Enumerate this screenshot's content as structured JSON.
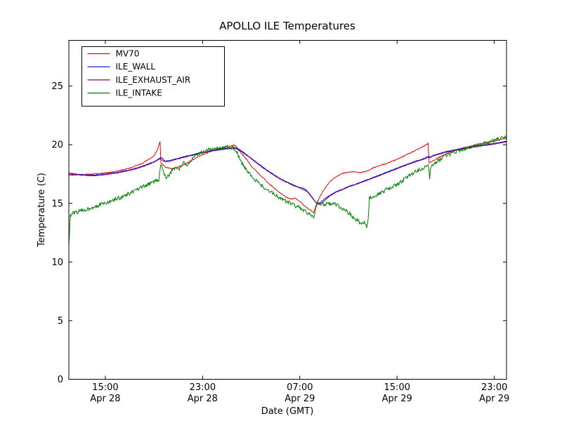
{
  "chart_data": {
    "type": "line",
    "title": "APOLLO ILE Temperatures",
    "xlabel": "Date (GMT)",
    "ylabel": "Temperature (C)",
    "x_unit_hours_since": "12:00 Apr 28 (GMT)",
    "xlim": [
      0,
      36
    ],
    "ylim": [
      0,
      28.9
    ],
    "grid": false,
    "legend_position": "upper left",
    "yticks": [
      0,
      5,
      10,
      15,
      20,
      25
    ],
    "xticks": [
      {
        "t": 3,
        "time": "15:00",
        "date": "Apr 28"
      },
      {
        "t": 11,
        "time": "23:00",
        "date": "Apr 28"
      },
      {
        "t": 19,
        "time": "07:00",
        "date": "Apr 29"
      },
      {
        "t": 27,
        "time": "15:00",
        "date": "Apr 29"
      },
      {
        "t": 35,
        "time": "23:00",
        "date": "Apr 29"
      }
    ],
    "series": [
      {
        "name": "MV70",
        "color": "#e60000",
        "noise": 0.04,
        "seed": 11,
        "points": [
          [
            0,
            17.4
          ],
          [
            1,
            17.45
          ],
          [
            2,
            17.5
          ],
          [
            3,
            17.6
          ],
          [
            4,
            17.75
          ],
          [
            5,
            18.0
          ],
          [
            6,
            18.4
          ],
          [
            6.5,
            18.7
          ],
          [
            7,
            19.05
          ],
          [
            7.3,
            19.6
          ],
          [
            7.5,
            20.25
          ],
          [
            7.58,
            18.45
          ],
          [
            8,
            18.05
          ],
          [
            8.5,
            17.95
          ],
          [
            9,
            18.1
          ],
          [
            9.5,
            18.35
          ],
          [
            10,
            18.6
          ],
          [
            10.5,
            18.9
          ],
          [
            11,
            19.15
          ],
          [
            11.5,
            19.35
          ],
          [
            12,
            19.55
          ],
          [
            12.5,
            19.7
          ],
          [
            13,
            19.8
          ],
          [
            13.6,
            19.95
          ],
          [
            13.75,
            19.85
          ],
          [
            14,
            19.5
          ],
          [
            14.5,
            18.9
          ],
          [
            15,
            18.2
          ],
          [
            15.5,
            17.65
          ],
          [
            16,
            17.15
          ],
          [
            16.5,
            16.65
          ],
          [
            17,
            16.2
          ],
          [
            17.5,
            15.8
          ],
          [
            18,
            15.45
          ],
          [
            18.3,
            15.35
          ],
          [
            18.6,
            15.45
          ],
          [
            19,
            15.15
          ],
          [
            19.5,
            14.7
          ],
          [
            20,
            14.3
          ],
          [
            20.15,
            14.2
          ],
          [
            20.4,
            15.0
          ],
          [
            20.7,
            15.7
          ],
          [
            21,
            16.2
          ],
          [
            21.5,
            16.9
          ],
          [
            22,
            17.3
          ],
          [
            22.5,
            17.55
          ],
          [
            23,
            17.65
          ],
          [
            23.5,
            17.7
          ],
          [
            24,
            17.6
          ],
          [
            24.5,
            17.75
          ],
          [
            25,
            18.0
          ],
          [
            25.5,
            18.2
          ],
          [
            26,
            18.35
          ],
          [
            26.5,
            18.55
          ],
          [
            27,
            18.75
          ],
          [
            27.5,
            19.0
          ],
          [
            28,
            19.25
          ],
          [
            28.5,
            19.5
          ],
          [
            29,
            19.75
          ],
          [
            29.55,
            20.1
          ],
          [
            29.63,
            18.45
          ],
          [
            30,
            18.65
          ],
          [
            30.5,
            18.95
          ],
          [
            31,
            19.2
          ],
          [
            31.5,
            19.45
          ],
          [
            32,
            19.6
          ],
          [
            32.5,
            19.75
          ],
          [
            33,
            19.85
          ],
          [
            33.5,
            20.0
          ],
          [
            34,
            20.1
          ],
          [
            34.5,
            20.2
          ],
          [
            35,
            20.3
          ],
          [
            35.5,
            20.45
          ],
          [
            36,
            20.6
          ]
        ]
      },
      {
        "name": "ILE_WALL",
        "color": "#0000dd",
        "noise": 0.025,
        "seed": 22,
        "points": [
          [
            0,
            17.6
          ],
          [
            0.5,
            17.5
          ],
          [
            1,
            17.45
          ],
          [
            2,
            17.4
          ],
          [
            3,
            17.5
          ],
          [
            4,
            17.65
          ],
          [
            5,
            17.85
          ],
          [
            6,
            18.15
          ],
          [
            6.5,
            18.35
          ],
          [
            7,
            18.55
          ],
          [
            7.5,
            18.85
          ],
          [
            7.65,
            18.9
          ],
          [
            7.9,
            18.6
          ],
          [
            8.3,
            18.65
          ],
          [
            9,
            18.85
          ],
          [
            9.5,
            19.0
          ],
          [
            10,
            19.1
          ],
          [
            10.5,
            19.25
          ],
          [
            11,
            19.35
          ],
          [
            11.5,
            19.45
          ],
          [
            12,
            19.55
          ],
          [
            12.5,
            19.65
          ],
          [
            13,
            19.7
          ],
          [
            13.6,
            19.78
          ],
          [
            14,
            19.6
          ],
          [
            14.5,
            19.25
          ],
          [
            15,
            18.85
          ],
          [
            15.5,
            18.45
          ],
          [
            16,
            18.05
          ],
          [
            16.5,
            17.7
          ],
          [
            17,
            17.35
          ],
          [
            17.5,
            17.05
          ],
          [
            18,
            16.8
          ],
          [
            18.5,
            16.55
          ],
          [
            19,
            16.35
          ],
          [
            19.3,
            16.3
          ],
          [
            19.6,
            16.05
          ],
          [
            20,
            15.55
          ],
          [
            20.3,
            15.1
          ],
          [
            20.55,
            14.95
          ],
          [
            20.8,
            15.15
          ],
          [
            21,
            15.35
          ],
          [
            21.5,
            15.7
          ],
          [
            22,
            16.0
          ],
          [
            22.5,
            16.2
          ],
          [
            23,
            16.45
          ],
          [
            23.5,
            16.6
          ],
          [
            24,
            16.8
          ],
          [
            24.5,
            17.0
          ],
          [
            25,
            17.2
          ],
          [
            25.5,
            17.4
          ],
          [
            26,
            17.6
          ],
          [
            26.5,
            17.8
          ],
          [
            27,
            18.0
          ],
          [
            27.5,
            18.2
          ],
          [
            28,
            18.4
          ],
          [
            28.5,
            18.6
          ],
          [
            29,
            18.75
          ],
          [
            29.5,
            18.95
          ],
          [
            29.63,
            19.0
          ],
          [
            29.7,
            18.9
          ],
          [
            30,
            19.1
          ],
          [
            30.5,
            19.25
          ],
          [
            31,
            19.4
          ],
          [
            31.5,
            19.5
          ],
          [
            32,
            19.6
          ],
          [
            32.5,
            19.7
          ],
          [
            33,
            19.8
          ],
          [
            33.5,
            19.9
          ],
          [
            34,
            19.95
          ],
          [
            34.5,
            20.05
          ],
          [
            35,
            20.1
          ],
          [
            35.5,
            20.2
          ],
          [
            36,
            20.3
          ]
        ]
      },
      {
        "name": "ILE_EXHAUST_AIR",
        "color": "#800080",
        "noise": 0.025,
        "seed": 33,
        "points": [
          [
            0,
            17.5
          ],
          [
            1,
            17.4
          ],
          [
            2,
            17.35
          ],
          [
            3,
            17.45
          ],
          [
            4,
            17.6
          ],
          [
            5,
            17.8
          ],
          [
            6,
            18.1
          ],
          [
            7,
            18.5
          ],
          [
            7.5,
            18.8
          ],
          [
            7.9,
            18.55
          ],
          [
            8.3,
            18.6
          ],
          [
            9,
            18.8
          ],
          [
            10,
            19.05
          ],
          [
            11,
            19.3
          ],
          [
            12,
            19.5
          ],
          [
            13,
            19.65
          ],
          [
            13.6,
            19.72
          ],
          [
            14,
            19.55
          ],
          [
            14.5,
            19.2
          ],
          [
            15,
            18.8
          ],
          [
            16,
            18.0
          ],
          [
            17,
            17.3
          ],
          [
            17.5,
            17.0
          ],
          [
            18,
            16.75
          ],
          [
            18.5,
            16.5
          ],
          [
            19,
            16.3
          ],
          [
            19.6,
            16.0
          ],
          [
            20,
            15.5
          ],
          [
            20.4,
            14.95
          ],
          [
            20.6,
            14.9
          ],
          [
            20.9,
            15.1
          ],
          [
            21.5,
            15.65
          ],
          [
            22,
            15.95
          ],
          [
            22.5,
            16.15
          ],
          [
            23,
            16.4
          ],
          [
            24,
            16.75
          ],
          [
            25,
            17.15
          ],
          [
            26,
            17.55
          ],
          [
            27,
            17.95
          ],
          [
            28,
            18.35
          ],
          [
            29,
            18.7
          ],
          [
            29.63,
            18.95
          ],
          [
            30,
            19.05
          ],
          [
            31,
            19.35
          ],
          [
            32,
            19.55
          ],
          [
            33,
            19.75
          ],
          [
            34,
            19.9
          ],
          [
            35,
            20.05
          ],
          [
            36,
            20.25
          ]
        ]
      },
      {
        "name": "ILE_INTAKE",
        "color": "#008000",
        "noise": 0.17,
        "seed": 44,
        "points": [
          [
            0,
            11.5
          ],
          [
            0.12,
            13.9
          ],
          [
            0.3,
            14.15
          ],
          [
            0.5,
            14.2
          ],
          [
            1,
            14.35
          ],
          [
            1.5,
            14.5
          ],
          [
            2,
            14.7
          ],
          [
            2.5,
            14.85
          ],
          [
            3,
            15.0
          ],
          [
            3.5,
            15.2
          ],
          [
            4,
            15.4
          ],
          [
            4.5,
            15.6
          ],
          [
            5,
            15.85
          ],
          [
            5.5,
            16.1
          ],
          [
            6,
            16.35
          ],
          [
            6.5,
            16.6
          ],
          [
            7,
            16.85
          ],
          [
            7.4,
            17.05
          ],
          [
            7.55,
            18.35
          ],
          [
            7.75,
            17.9
          ],
          [
            7.95,
            17.15
          ],
          [
            8.2,
            17.35
          ],
          [
            8.5,
            17.8
          ],
          [
            8.8,
            18.1
          ],
          [
            9.1,
            17.95
          ],
          [
            9.4,
            18.45
          ],
          [
            9.7,
            18.25
          ],
          [
            10,
            18.6
          ],
          [
            10.4,
            18.95
          ],
          [
            10.8,
            19.3
          ],
          [
            11.2,
            19.5
          ],
          [
            11.6,
            19.6
          ],
          [
            12,
            19.65
          ],
          [
            12.5,
            19.7
          ],
          [
            13,
            19.8
          ],
          [
            13.5,
            19.75
          ],
          [
            13.7,
            19.55
          ],
          [
            14,
            19.0
          ],
          [
            14.3,
            18.3
          ],
          [
            14.6,
            17.85
          ],
          [
            15,
            17.35
          ],
          [
            15.5,
            16.85
          ],
          [
            16,
            16.4
          ],
          [
            16.5,
            16.05
          ],
          [
            17,
            15.7
          ],
          [
            17.5,
            15.4
          ],
          [
            18,
            15.1
          ],
          [
            18.5,
            14.85
          ],
          [
            19,
            14.6
          ],
          [
            19.5,
            14.3
          ],
          [
            20,
            13.85
          ],
          [
            20.15,
            13.7
          ],
          [
            20.3,
            14.45
          ],
          [
            20.45,
            14.95
          ],
          [
            20.7,
            15.0
          ],
          [
            21,
            14.9
          ],
          [
            21.3,
            15.05
          ],
          [
            21.6,
            14.95
          ],
          [
            22,
            14.9
          ],
          [
            22.3,
            14.7
          ],
          [
            22.6,
            14.45
          ],
          [
            23,
            14.2
          ],
          [
            23.3,
            13.9
          ],
          [
            23.6,
            13.6
          ],
          [
            23.9,
            13.4
          ],
          [
            24.1,
            13.2
          ],
          [
            24.3,
            13.35
          ],
          [
            24.5,
            13.0
          ],
          [
            24.62,
            13.6
          ],
          [
            24.72,
            15.5
          ],
          [
            25,
            15.6
          ],
          [
            25.5,
            15.8
          ],
          [
            26,
            16.1
          ],
          [
            26.5,
            16.35
          ],
          [
            27,
            16.6
          ],
          [
            27.5,
            17.0
          ],
          [
            28,
            17.35
          ],
          [
            28.5,
            17.7
          ],
          [
            29,
            17.95
          ],
          [
            29.4,
            18.1
          ],
          [
            29.6,
            18.15
          ],
          [
            29.68,
            17.1
          ],
          [
            29.78,
            18.2
          ],
          [
            30,
            18.35
          ],
          [
            30.5,
            18.75
          ],
          [
            31,
            19.05
          ],
          [
            31.5,
            19.3
          ],
          [
            32,
            19.45
          ],
          [
            32.5,
            19.6
          ],
          [
            33,
            19.75
          ],
          [
            33.5,
            19.9
          ],
          [
            34,
            20.05
          ],
          [
            34.5,
            20.2
          ],
          [
            35,
            20.35
          ],
          [
            35.5,
            20.5
          ],
          [
            36,
            20.65
          ]
        ]
      }
    ]
  }
}
